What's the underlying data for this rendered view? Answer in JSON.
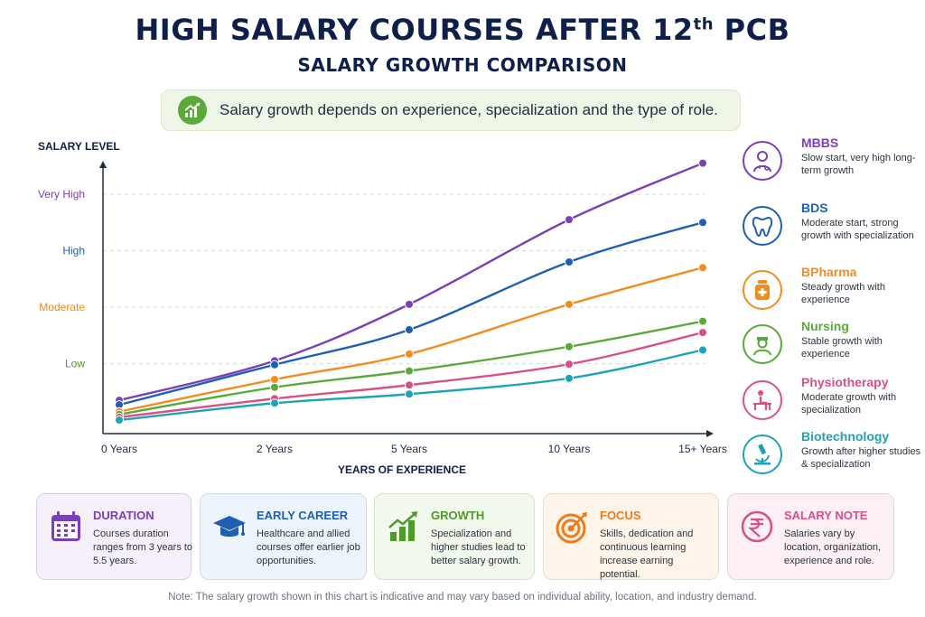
{
  "title_main": "HIGH SALARY COURSES AFTER 12",
  "title_sup": "th",
  "title_end": " PCB",
  "subtitle": "SALARY GROWTH COMPARISON",
  "banner": {
    "text": "Salary growth depends on experience, specialization and the type of role.",
    "icon": "growth-chart-icon"
  },
  "chart_data": {
    "type": "line",
    "title": "SALARY GROWTH COMPARISON",
    "xlabel": "YEARS OF EXPERIENCE",
    "ylabel": "SALARY LEVEL",
    "categories": [
      "0 Years",
      "2 Years",
      "5 Years",
      "10 Years",
      "15+ Years"
    ],
    "y_levels": [
      {
        "label": "Low",
        "value": 1,
        "color": "#4e9a2a"
      },
      {
        "label": "Moderate",
        "value": 2,
        "color": "#ef8a1d"
      },
      {
        "label": "High",
        "value": 3,
        "color": "#1e5fb4"
      },
      {
        "label": "Very High",
        "value": 4,
        "color": "#7b3fb0"
      }
    ],
    "ylim": [
      0.0,
      4.6
    ],
    "grid": true,
    "legend_position": "right",
    "series": [
      {
        "name": "MBBS",
        "color": "#7b3fb8",
        "values": [
          0.35,
          1.05,
          2.05,
          3.55,
          4.55
        ]
      },
      {
        "name": "BDS",
        "color": "#1e5fb4",
        "values": [
          0.27,
          0.98,
          1.6,
          2.8,
          3.5
        ]
      },
      {
        "name": "BPharma",
        "color": "#f28c1e",
        "values": [
          0.15,
          0.72,
          1.17,
          2.05,
          2.7
        ]
      },
      {
        "name": "Nursing",
        "color": "#5aa93a",
        "values": [
          0.1,
          0.58,
          0.87,
          1.3,
          1.75
        ]
      },
      {
        "name": "Physiotherapy",
        "color": "#d94f8a",
        "values": [
          0.05,
          0.38,
          0.62,
          0.99,
          1.55
        ]
      },
      {
        "name": "Biotechnology",
        "color": "#1ea2b8",
        "values": [
          0.0,
          0.3,
          0.46,
          0.74,
          1.24
        ]
      }
    ]
  },
  "legend": [
    {
      "name": "MBBS",
      "desc": "Slow start, very high long-term growth",
      "color": "#7b3fb8",
      "icon": "doctor-icon"
    },
    {
      "name": "BDS",
      "desc": "Moderate start, strong growth with specialization",
      "color": "#1e5fb4",
      "icon": "tooth-icon"
    },
    {
      "name": "BPharma",
      "desc": "Steady growth with experience",
      "color": "#f28c1e",
      "icon": "medicine-bottle-icon"
    },
    {
      "name": "Nursing",
      "desc": "Stable growth with experience",
      "color": "#5aa93a",
      "icon": "nurse-icon"
    },
    {
      "name": "Physiotherapy",
      "desc": "Moderate growth with specialization",
      "color": "#d94f8a",
      "icon": "physiotherapy-icon"
    },
    {
      "name": "Biotechnology",
      "desc": "Growth after higher studies & specialization",
      "color": "#1ea2b8",
      "icon": "microscope-icon"
    }
  ],
  "cards": [
    {
      "title": "DURATION",
      "text": "Courses duration ranges from 3 years to 5.5 years.",
      "color": "#7b3fb8",
      "bg": "#f6f0fb",
      "border": "#dccbee",
      "icon": "calendar-icon"
    },
    {
      "title": "EARLY CAREER",
      "text": "Healthcare and allied courses offer earlier job opportunities.",
      "color": "#1e5fb4",
      "bg": "#eef4fc",
      "border": "#c9dcf3",
      "icon": "graduation-cap-icon"
    },
    {
      "title": "GROWTH",
      "text": "Specialization and higher studies lead to better salary growth.",
      "color": "#4e9a2a",
      "bg": "#f1f8ec",
      "border": "#d2e7c4",
      "icon": "bar-growth-icon"
    },
    {
      "title": "FOCUS",
      "text": "Skills, dedication and continuous learning increase earning potential.",
      "color": "#ef7a1a",
      "bg": "#fef4ea",
      "border": "#f6d9bb",
      "icon": "target-icon"
    },
    {
      "title": "SALARY NOTE",
      "text": "Salaries vary by location, organization, experience and role.",
      "color": "#d94f8a",
      "bg": "#fcf0f5",
      "border": "#f1cfdf",
      "icon": "rupee-icon"
    }
  ],
  "note": "Note: The salary growth shown in this chart is indicative and may vary based on individual ability, location, and industry demand."
}
